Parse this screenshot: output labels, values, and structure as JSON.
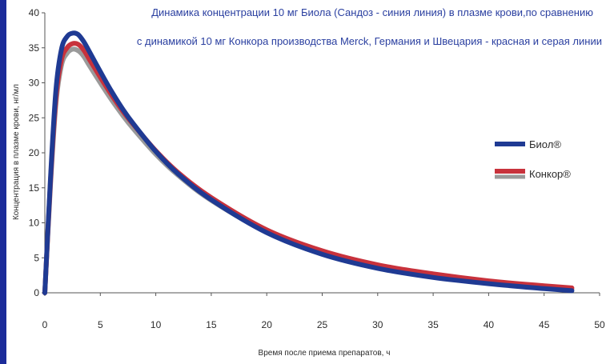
{
  "chart_data": {
    "type": "line",
    "title": [
      "Динамика концентрации 10 мг Биола (Сандоз - синия линия) в плазме крови,по сравнению",
      "с динамикой 10 мг Конкора производства Merck, Германия и Швецария - красная и серая линии"
    ],
    "xlabel": "Время после приема препаратов, ч",
    "ylabel": "Концентрация в плазме крови, нг/мл",
    "xlim": [
      0,
      50
    ],
    "ylim": [
      0,
      40
    ],
    "xticks": [
      0,
      5,
      10,
      15,
      20,
      25,
      30,
      35,
      40,
      45,
      50
    ],
    "yticks": [
      0,
      5,
      10,
      15,
      20,
      25,
      30,
      35,
      40
    ],
    "grid": false,
    "legend_position": "right",
    "legend": [
      {
        "label": "Биол®",
        "color": "#1f3a93"
      },
      {
        "label": "Конкор®",
        "colors": [
          "#c8323c",
          "#9a9a9a"
        ]
      }
    ],
    "series": [
      {
        "color": "#9a9a9a",
        "x": [
          0,
          0.5,
          1,
          1.5,
          2,
          2.5,
          3,
          3.5,
          4,
          5,
          6,
          7,
          8,
          10,
          12,
          15,
          20,
          25,
          30,
          35,
          40,
          45,
          47.5
        ],
        "y": [
          0,
          15,
          27,
          32.5,
          34.2,
          34.8,
          34.6,
          33.8,
          32.5,
          30,
          27.6,
          25.4,
          23.4,
          19.8,
          16.8,
          13.2,
          8.7,
          5.7,
          3.7,
          2.3,
          1.4,
          0.75,
          0.5
        ]
      },
      {
        "color": "#c8323c",
        "x": [
          0,
          0.5,
          1,
          1.5,
          2,
          2.5,
          3,
          3.5,
          4,
          5,
          6,
          7,
          8,
          10,
          12,
          15,
          20,
          25,
          30,
          35,
          40,
          45,
          47.5
        ],
        "y": [
          0,
          15.5,
          27.8,
          33.3,
          35,
          35.6,
          35.5,
          34.7,
          33.4,
          30.8,
          28.3,
          26,
          24,
          20.3,
          17.2,
          13.6,
          9,
          6,
          4,
          2.7,
          1.7,
          1.0,
          0.7
        ]
      },
      {
        "color": "#1f3a93",
        "x": [
          0,
          0.5,
          1,
          1.5,
          2,
          2.5,
          3,
          3.5,
          4,
          5,
          6,
          7,
          8,
          10,
          12,
          15,
          20,
          25,
          30,
          35,
          40,
          45,
          47.5
        ],
        "y": [
          0,
          16,
          29,
          34.8,
          36.6,
          37.1,
          36.9,
          35.9,
          34.5,
          31.6,
          28.8,
          26.3,
          24.1,
          20.2,
          17,
          13.3,
          8.6,
          5.5,
          3.5,
          2.2,
          1.3,
          0.6,
          0.3
        ]
      }
    ]
  }
}
